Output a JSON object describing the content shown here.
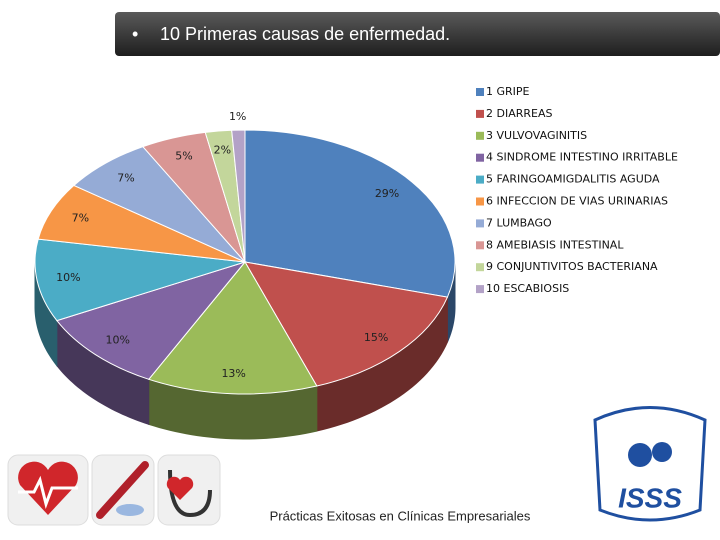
{
  "chart_data": {
    "type": "pie",
    "title": "10 Primeras causas de enfermedad.",
    "categories": [
      "1 GRIPE",
      "2 DIARREAS",
      "3 VULVOVAGINITIS",
      "4 SINDROME INTESTINO IRRITABLE",
      "5 FARINGOAMIGDALITIS AGUDA",
      "6 INFECCION DE VIAS URINARIAS",
      "7 LUMBAGO",
      "8 AMEBIASIS INTESTINAL",
      "9 CONJUNTIVITOS BACTERIANA",
      "10 ESCABIOSIS"
    ],
    "values": [
      29,
      15,
      13,
      10,
      10,
      7,
      7,
      5,
      2,
      1
    ],
    "value_labels": [
      "29%",
      "15%",
      "13%",
      "10%",
      "10%",
      "7%",
      "7%",
      "5%",
      "2%",
      "1%"
    ],
    "colors": [
      "#4f81bd",
      "#c0504d",
      "#9bbb59",
      "#8064a2",
      "#4bacc6",
      "#f79646",
      "#95abd6",
      "#d99694",
      "#c3d69b",
      "#b3a2c7"
    ],
    "legend": "right"
  },
  "footer": "Prácticas Exitosas en Clínicas Empresariales",
  "logo": "ISSS"
}
